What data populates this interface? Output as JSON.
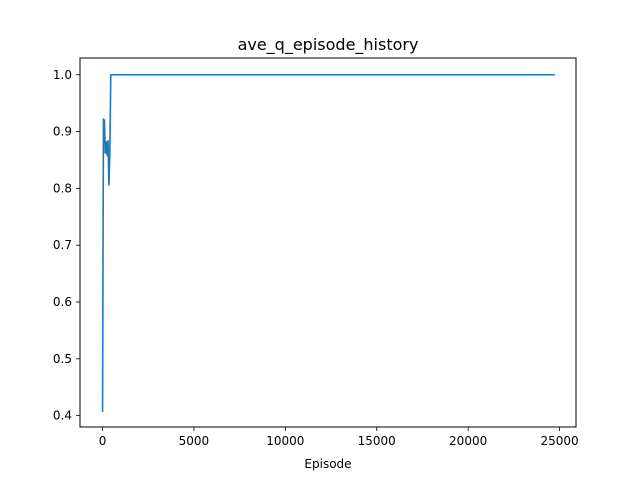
{
  "chart_data": {
    "type": "line",
    "title": "ave_q_episode_history",
    "xlabel": "Episode",
    "ylabel": "",
    "xlim": [
      -1233,
      25900
    ],
    "ylim": [
      0.38,
      1.0295
    ],
    "grid": false,
    "x_ticks": [
      0,
      5000,
      10000,
      15000,
      20000,
      25000
    ],
    "x_tick_labels": [
      "0",
      "5000",
      "10000",
      "15000",
      "20000",
      "25000"
    ],
    "y_ticks": [
      0.4,
      0.5,
      0.6,
      0.7,
      0.8,
      0.9,
      1.0
    ],
    "y_tick_labels": [
      "0.4",
      "0.5",
      "0.6",
      "0.7",
      "0.8",
      "0.9",
      "1.0"
    ],
    "colors": {
      "line": "#1f77b4"
    },
    "series": [
      {
        "x": [
          0,
          50,
          100,
          150,
          200,
          250,
          300,
          350,
          400,
          450,
          500,
          24700
        ],
        "y": [
          0.408,
          0.922,
          0.92,
          0.862,
          0.882,
          0.858,
          0.884,
          0.806,
          0.864,
          1.0,
          1.0,
          1.0
        ]
      }
    ]
  }
}
